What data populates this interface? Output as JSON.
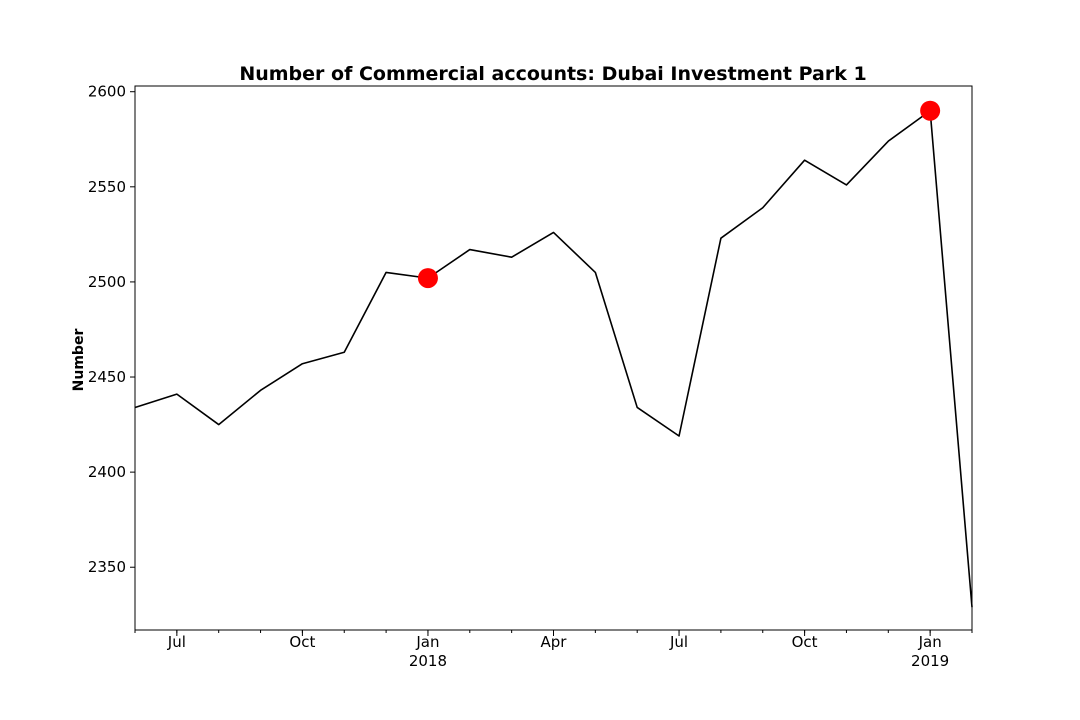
{
  "chart_data": {
    "type": "line",
    "title": "Number of Commercial accounts: Dubai Investment Park 1",
    "xlabel": "",
    "ylabel": "Number",
    "x": [
      "2017-06",
      "2017-07",
      "2017-08",
      "2017-09",
      "2017-10",
      "2017-11",
      "2017-12",
      "2018-01",
      "2018-02",
      "2018-03",
      "2018-04",
      "2018-05",
      "2018-06",
      "2018-07",
      "2018-08",
      "2018-09",
      "2018-10",
      "2018-11",
      "2018-12",
      "2019-01",
      "2019-02"
    ],
    "series": [
      {
        "values": [
          2434,
          2441,
          2425,
          2443,
          2457,
          2463,
          2505,
          2502,
          2517,
          2513,
          2526,
          2505,
          2434,
          2419,
          2523,
          2539,
          2564,
          2551,
          2574,
          2590,
          2329
        ],
        "color": "#000000"
      }
    ],
    "highlight_points": [
      {
        "x": "2018-01",
        "y": 2502,
        "color": "#ff0000"
      },
      {
        "x": "2019-01",
        "y": 2590,
        "color": "#ff0000"
      }
    ],
    "ylim": [
      2317,
      2603
    ],
    "xlim": [
      "2017-06",
      "2019-02"
    ],
    "yticks": [
      2350,
      2400,
      2450,
      2500,
      2550,
      2600
    ],
    "xticks": [
      {
        "x": "2017-07",
        "label": "Jul",
        "sublabel": ""
      },
      {
        "x": "2017-10",
        "label": "Oct",
        "sublabel": ""
      },
      {
        "x": "2018-01",
        "label": "Jan",
        "sublabel": "2018"
      },
      {
        "x": "2018-04",
        "label": "Apr",
        "sublabel": ""
      },
      {
        "x": "2018-07",
        "label": "Jul",
        "sublabel": ""
      },
      {
        "x": "2018-10",
        "label": "Oct",
        "sublabel": ""
      },
      {
        "x": "2019-01",
        "label": "Jan",
        "sublabel": "2019"
      }
    ],
    "grid": false,
    "legend": "none"
  }
}
